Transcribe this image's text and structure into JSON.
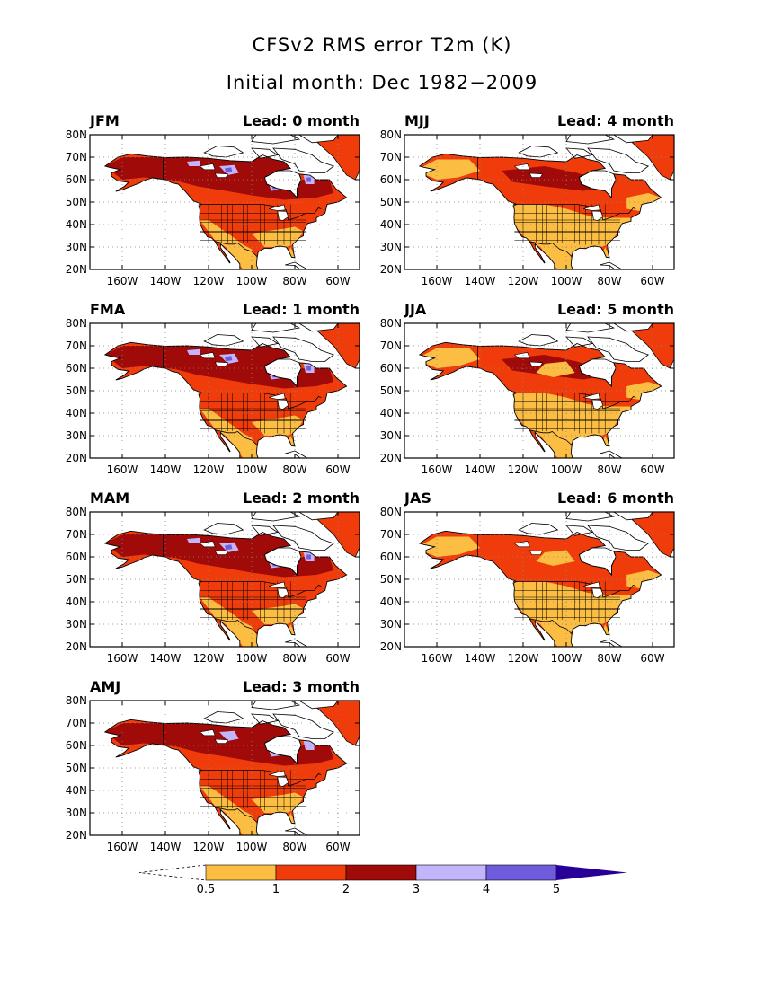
{
  "title": "CFSv2 RMS error T2m (K)",
  "subtitle": "Initial month: Dec 1982−2009",
  "lead_prefix": "Lead:",
  "lead_unit": "month",
  "lat_ticks": [
    "80N",
    "70N",
    "60N",
    "50N",
    "40N",
    "30N",
    "20N"
  ],
  "lon_ticks": [
    "160W",
    "140W",
    "120W",
    "100W",
    "80W",
    "60W"
  ],
  "panels": [
    {
      "season": "JFM",
      "lead": 0,
      "severity": 0.85
    },
    {
      "season": "FMA",
      "lead": 1,
      "severity": 0.95
    },
    {
      "season": "MAM",
      "lead": 2,
      "severity": 0.75
    },
    {
      "season": "AMJ",
      "lead": 3,
      "severity": 0.55
    },
    {
      "season": "MJJ",
      "lead": 4,
      "severity": 0.25
    },
    {
      "season": "JJA",
      "lead": 5,
      "severity": 0.15
    },
    {
      "season": "JAS",
      "lead": 6,
      "severity": 0.12
    }
  ],
  "colorbar": {
    "levels": [
      "0.5",
      "1",
      "2",
      "3",
      "4",
      "5"
    ],
    "colors": [
      "#fcbe42",
      "#f03c0a",
      "#a00a08",
      "#c2b5fb",
      "#6e5cdc",
      "#280098"
    ]
  },
  "colors": {
    "ocean": "#ffffff",
    "land_low": "#fcbe42",
    "land_mid": "#f03c0a",
    "land_high": "#a00a08",
    "light_purple": "#c2b5fb",
    "mid_purple": "#6e5cdc"
  }
}
